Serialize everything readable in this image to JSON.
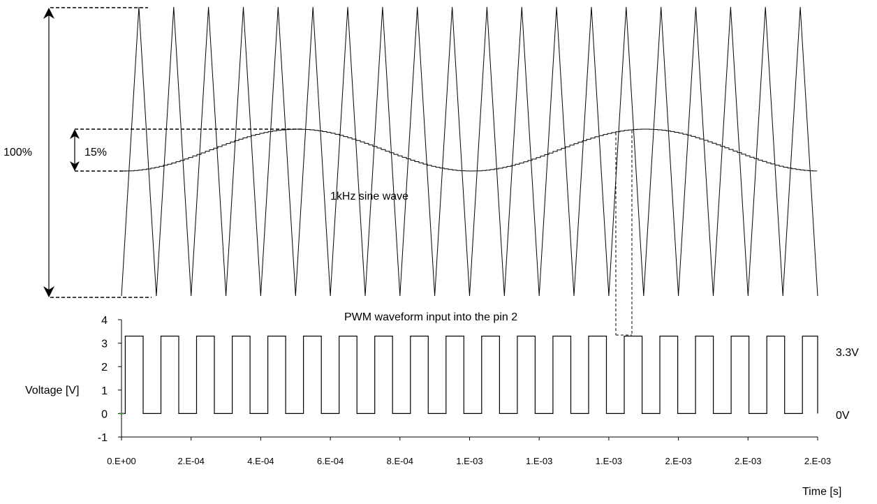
{
  "chart_data": {
    "type": "line",
    "title": "",
    "xlabel": "Time [s]",
    "ylabel": "Voltage [V]",
    "xlim": [
      0,
      0.002
    ],
    "ylim": [
      -1,
      4
    ],
    "x_tick_labels": [
      "0.E+00",
      "2.E-04",
      "4.E-04",
      "6.E-04",
      "8.E-04",
      "1.E-03",
      "1.E-03",
      "1.E-03",
      "2.E-03",
      "2.E-03",
      "2.E-03"
    ],
    "y_ticks": [
      4,
      3,
      2,
      1,
      0,
      -1
    ],
    "grid": false,
    "annotations": {
      "full_scale": "100%",
      "sine_amplitude": "15%",
      "sine_label": "1kHz sine wave",
      "pwm_label": "PWM waveform input into the pin 2",
      "high_level": "3.3V",
      "low_level": "0V"
    },
    "series": [
      {
        "type": "step",
        "pwm_high": 3.3,
        "pwm_low": 0,
        "pwm_periods": 20,
        "pwm_rising": [
          1.09e-05,
          0.0001133,
          0.0002157,
          0.0003181,
          0.0004204,
          0.0005228,
          0.0006252,
          0.0007276,
          0.00083,
          0.0009324,
          0.0010348,
          0.0011372,
          0.0012396,
          0.001342,
          0.0014444,
          0.0015467,
          0.0016491,
          0.0017515,
          0.0018539,
          0.0019563
        ],
        "pwm_falling": [
          6.21e-05,
          0.0001645,
          0.0002669,
          0.0003693,
          0.0004717,
          0.0005741,
          0.0006764,
          0.0007788,
          0.0008812,
          0.0009836,
          0.001086,
          0.0011884,
          0.0012908,
          0.0013932,
          0.0014956,
          0.001598,
          0.0017003,
          0.0018027,
          0.0019051,
          0.0020075
        ]
      }
    ],
    "carrier": {
      "type": "triangle",
      "periods": 20,
      "min_percent": 0,
      "max_percent": 100
    },
    "modulating": {
      "type": "sine",
      "frequency_hz": 1000,
      "amplitude_percent": 15
    }
  }
}
